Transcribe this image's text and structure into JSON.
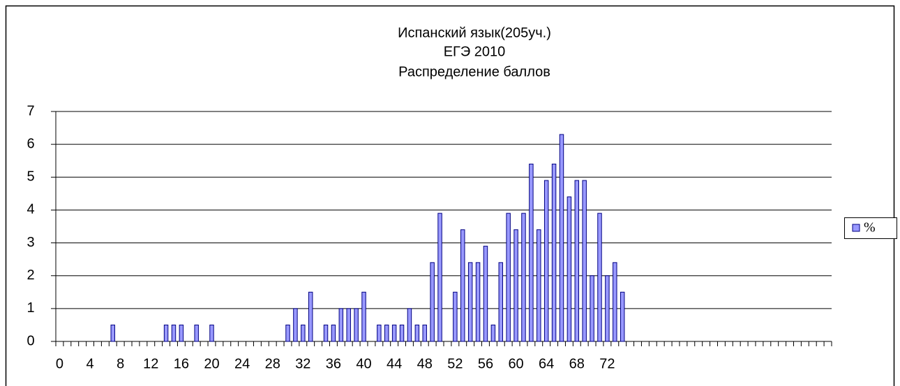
{
  "chart_data": {
    "type": "bar",
    "title": [
      "Испанский язык(205уч.)",
      "ЕГЭ 2010",
      "Распределение баллов"
    ],
    "categories": [
      "0",
      null,
      null,
      null,
      "4",
      null,
      null,
      null,
      "8",
      null,
      null,
      null,
      "12",
      null,
      null,
      null,
      "16",
      null,
      null,
      null,
      "20",
      null,
      null,
      null,
      "24",
      null,
      null,
      null,
      "28",
      null,
      null,
      null,
      "32",
      null,
      null,
      null,
      "36",
      null,
      null,
      null,
      "40",
      null,
      null,
      null,
      "44",
      null,
      null,
      null,
      "48",
      null,
      null,
      null,
      "52",
      null,
      null,
      null,
      "56",
      null,
      null,
      null,
      "60",
      null,
      null,
      null,
      "64",
      null,
      null,
      null,
      "68",
      null,
      null,
      null,
      "72",
      null,
      null,
      null,
      null,
      null,
      null,
      null,
      null,
      null,
      null,
      null,
      null,
      null,
      null,
      null,
      null,
      null,
      null,
      null,
      null,
      null,
      null,
      null,
      null,
      null,
      null,
      null,
      null,
      null
    ],
    "series": [
      {
        "name": "%",
        "color": "#9999ff",
        "values": [
          null,
          null,
          null,
          null,
          null,
          null,
          null,
          0.5,
          null,
          null,
          null,
          null,
          null,
          null,
          0.5,
          0.5,
          0.5,
          null,
          0.5,
          null,
          0.5,
          null,
          null,
          null,
          null,
          null,
          null,
          null,
          null,
          null,
          0.5,
          1,
          0.5,
          1.5,
          null,
          0.5,
          0.5,
          1,
          1,
          1,
          1.5,
          null,
          0.5,
          0.5,
          0.5,
          0.5,
          1,
          0.5,
          0.5,
          2.4,
          3.9,
          null,
          1.5,
          3.4,
          2.4,
          2.4,
          2.9,
          0.5,
          2.4,
          3.9,
          3.4,
          3.9,
          5.4,
          3.4,
          4.9,
          5.4,
          6.3,
          4.4,
          4.9,
          4.9,
          2,
          3.9,
          2,
          2.4,
          1.5,
          null,
          null,
          null,
          null,
          null,
          null,
          null,
          null,
          null,
          null,
          null,
          null,
          null,
          null,
          null,
          null,
          null,
          null,
          null,
          null,
          null,
          null,
          null,
          null,
          null,
          null,
          null
        ]
      }
    ],
    "ylim": [
      0,
      7
    ],
    "yticks": [
      0,
      1,
      2,
      3,
      4,
      5,
      6,
      7
    ],
    "grid": true,
    "legend": "right"
  }
}
